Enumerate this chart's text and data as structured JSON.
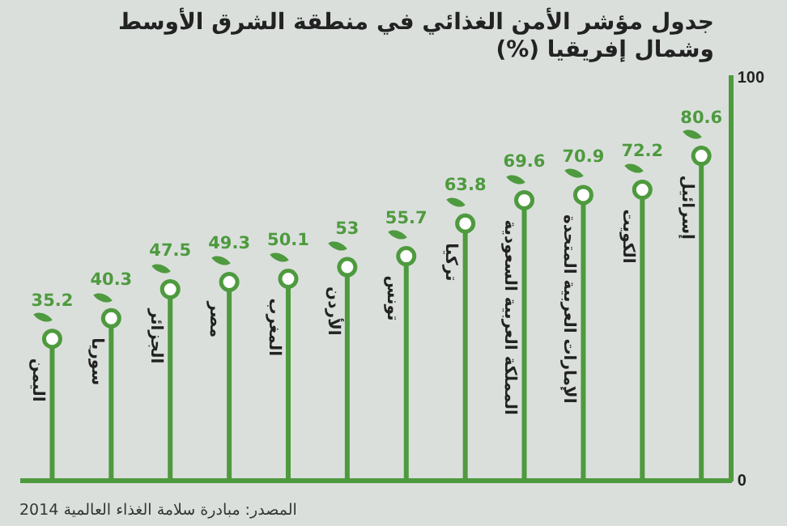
{
  "chart_data": {
    "type": "lollipop",
    "title": "جدول مؤشر الأمن الغذائي في منطقة الشرق الأوسط وشمال إفريقيا (%)",
    "categories": [
      "اليمن",
      "سوريا",
      "الجزائر",
      "مصر",
      "المغرب",
      "الأردن",
      "تونس",
      "تركيا",
      "المملكة العربية السعودية",
      "الإمارات العربية المتحدة",
      "الكويت",
      "إسرائيل"
    ],
    "values": [
      35.2,
      40.3,
      47.5,
      49.3,
      50.1,
      53,
      55.7,
      63.8,
      69.6,
      70.9,
      72.2,
      80.6
    ],
    "color": "#4e9a3e",
    "ylim": [
      0,
      100
    ],
    "yticks": [
      0,
      100
    ],
    "grid": false,
    "marker": "circle",
    "data_labels": true,
    "annotations": [
      "المصدر: مبادرة سلامة الغذاء العالمية 2014"
    ]
  }
}
